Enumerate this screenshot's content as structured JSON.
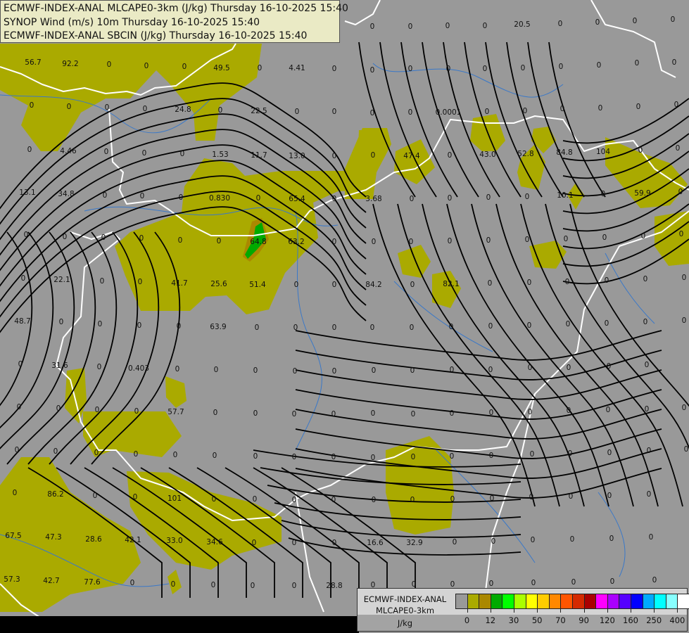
{
  "header": {
    "line1": "ECMWF-INDEX-ANAL MLCAPE0-3km (J/kg) Thursday 16-10-2025 15:40",
    "line2": "SYNOP Wind (m/s) 10m Thursday 16-10-2025 15:40",
    "line3": "ECMWF-INDEX-ANAL SBCIN (J/kg) Thursday 16-10-2025 15:40"
  },
  "legend": {
    "line1": "ECMWF-INDEX-ANAL",
    "line2": "MLCAPE0-3km",
    "unit": "J/kg",
    "colors": [
      "#999999",
      "#aaaa00",
      "#aa8800",
      "#00aa00",
      "#00ff00",
      "#aaff00",
      "#ffff00",
      "#ffcc00",
      "#ff8800",
      "#ff5500",
      "#d42a00",
      "#aa0000",
      "#ff00ff",
      "#aa00ff",
      "#5500ff",
      "#0000ff",
      "#00aaff",
      "#00ffff",
      "#88ffff",
      "#ffffff"
    ],
    "ticks": [
      "0",
      "12",
      "30",
      "50",
      "70",
      "90",
      "120",
      "160",
      "250",
      "400"
    ]
  },
  "map_colors": {
    "background": "#999999",
    "cape_low": "#aaaa00",
    "cape_mid": "#aa8800",
    "cape_high": "#00aa00",
    "borders": "#ffffff",
    "rivers": "#3a78c8",
    "streamlines": "#000000"
  },
  "station_values": [
    "56.7",
    "92.2",
    "0",
    "0",
    "0",
    "49.5",
    "0",
    "4.41",
    "0",
    "0",
    "0",
    "0",
    "0",
    "24.8",
    "0",
    "22.5",
    "0",
    "0",
    "0",
    "4.46",
    "0",
    "0",
    "0",
    "1.53",
    "11.7",
    "13.0",
    "0",
    "13.1",
    "34.8",
    "0",
    "0",
    "0",
    "0.830",
    "0",
    "65.4",
    "0",
    "0",
    "0",
    "0",
    "0",
    "0",
    "0",
    "64.8",
    "63.2",
    "0",
    "0",
    "22.1",
    "0",
    "0",
    "41.7",
    "25.6",
    "51.4",
    "0",
    "0",
    "48.7",
    "0",
    "0",
    "0",
    "0",
    "63.9",
    "0",
    "0",
    "0",
    "0",
    "31.6",
    "0",
    "0.403",
    "0",
    "0",
    "0",
    "0",
    "0",
    "0",
    "0",
    "0",
    "0",
    "57.7",
    "0",
    "0",
    "0",
    "0",
    "0",
    "0",
    "0",
    "0",
    "0",
    "0",
    "0",
    "0",
    "0",
    "0",
    "86.2",
    "0",
    "0",
    "101",
    "0",
    "0",
    "0",
    "0",
    "67.5",
    "47.3",
    "28.6",
    "42.1",
    "33.0",
    "34.6",
    "0",
    "0",
    "0",
    "57.3",
    "42.7",
    "77.6",
    "0",
    "0",
    "0",
    "0",
    "0",
    "28.8",
    "0",
    "0",
    "0",
    "0",
    "20.5",
    "0",
    "0",
    "0",
    "0",
    "0",
    "0",
    "0",
    "0",
    "0",
    "0",
    "0",
    "0",
    "0",
    "0",
    "0",
    "0.0001",
    "0",
    "0",
    "0",
    "0",
    "0",
    "0",
    "0",
    "47.4",
    "0",
    "43.0",
    "52.8",
    "84.8",
    "104",
    "0",
    "0",
    "3.68",
    "0",
    "0",
    "0",
    "0",
    "10.1",
    "0",
    "59.9",
    "0",
    "0",
    "0",
    "0",
    "0",
    "0",
    "0",
    "0",
    "0",
    "0",
    "84.2",
    "0",
    "82.1",
    "0",
    "0",
    "0",
    "0",
    "0",
    "0",
    "0",
    "0",
    "0",
    "0",
    "0",
    "0",
    "0",
    "0",
    "0",
    "0",
    "0",
    "0",
    "0",
    "0",
    "0",
    "0",
    "0",
    "0",
    "0",
    "0",
    "0",
    "0",
    "0",
    "0",
    "0",
    "0",
    "0",
    "0",
    "0",
    "0",
    "0",
    "0",
    "0",
    "0",
    "0",
    "0",
    "0",
    "0",
    "0",
    "0",
    "0",
    "0",
    "0",
    "16.6",
    "32.9",
    "0",
    "0",
    "0",
    "0",
    "0",
    "0",
    "0",
    "0",
    "0",
    "0",
    "0",
    "0",
    "0",
    "0"
  ]
}
